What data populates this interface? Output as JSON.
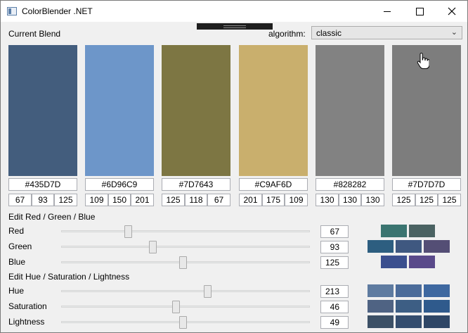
{
  "window": {
    "title": "ColorBlender .NET"
  },
  "labels": {
    "current_blend": "Current Blend",
    "algorithm": "algorithm:",
    "edit_rgb": "Edit Red / Green / Blue",
    "edit_hsl": "Edit Hue / Saturation / Lightness"
  },
  "algorithm": {
    "selected": "classic"
  },
  "swatches": [
    {
      "hex": "#435D7D",
      "color": "#435D7D",
      "r": "67",
      "g": "93",
      "b": "125"
    },
    {
      "hex": "#6D96C9",
      "color": "#6D96C9",
      "r": "109",
      "g": "150",
      "b": "201"
    },
    {
      "hex": "#7D7643",
      "color": "#7D7643",
      "r": "125",
      "g": "118",
      "b": "67"
    },
    {
      "hex": "#C9AF6D",
      "color": "#C9AF6D",
      "r": "201",
      "g": "175",
      "b": "109"
    },
    {
      "hex": "#828282",
      "color": "#828282",
      "r": "130",
      "g": "130",
      "b": "130"
    },
    {
      "hex": "#7D7D7D",
      "color": "#7D7D7D",
      "r": "125",
      "g": "125",
      "b": "125"
    }
  ],
  "rgb_sliders": [
    {
      "label": "Red",
      "value": "67",
      "level": 0.263
    },
    {
      "label": "Green",
      "value": "93",
      "level": 0.365
    },
    {
      "label": "Blue",
      "value": "125",
      "level": 0.49
    }
  ],
  "hsl_sliders": [
    {
      "label": "Hue",
      "value": "213",
      "level": 0.592
    },
    {
      "label": "Saturation",
      "value": "46",
      "level": 0.46
    },
    {
      "label": "Lightness",
      "value": "49",
      "level": 0.49
    }
  ],
  "variation_chips": {
    "red": [
      "#3A7470",
      "#4A6262"
    ],
    "green": [
      "#2D5E80",
      "#3F5880",
      "#544E75"
    ],
    "blue": [
      "#3B4F8E",
      "#5A4A8A"
    ],
    "hue": [
      "#5E7BA0",
      "#4C6C9A",
      "#3E68A0"
    ],
    "saturation": [
      "#4F6383",
      "#3D5E84",
      "#2F5A8C"
    ],
    "lightness": [
      "#3C5066",
      "#344D6E",
      "#2E4666"
    ]
  },
  "icons": {
    "app": "app-window-icon",
    "minimize": "minimize-icon",
    "maximize": "maximize-icon",
    "close": "close-icon",
    "dropdown": "chevron-down-icon",
    "cursor": "hand-cursor-icon"
  }
}
